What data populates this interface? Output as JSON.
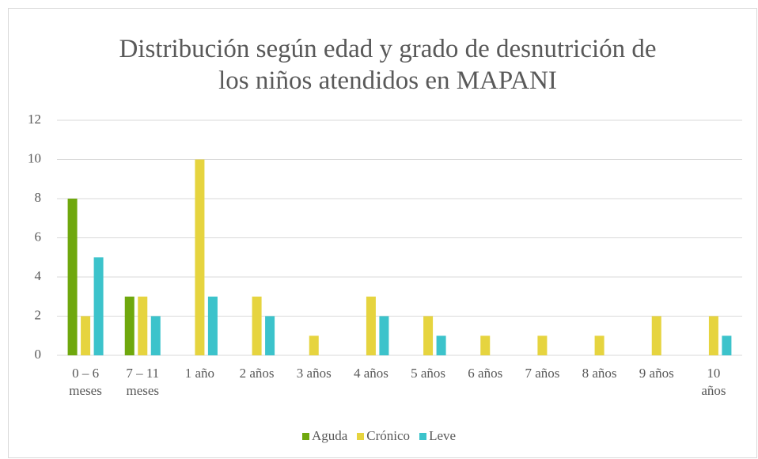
{
  "chart_data": {
    "type": "bar",
    "title": "Distribución según edad y grado de desnutrición de los niños atendidos en MAPANI",
    "categories": [
      "0 – 6 meses",
      "7 – 11 meses",
      "1 año",
      "2 años",
      "3 años",
      "4 años",
      "5 años",
      "6 años",
      "7 años",
      "8 años",
      "9 años",
      "10 años"
    ],
    "series": [
      {
        "name": "Aguda",
        "color": "#6fa80d",
        "values": [
          8,
          3,
          0,
          0,
          0,
          0,
          0,
          0,
          0,
          0,
          0,
          0
        ]
      },
      {
        "name": "Crónico",
        "color": "#e6d43f",
        "values": [
          2,
          3,
          10,
          3,
          1,
          3,
          2,
          1,
          1,
          1,
          2,
          2
        ]
      },
      {
        "name": "Leve",
        "color": "#3cc3cb",
        "values": [
          5,
          2,
          3,
          2,
          0,
          2,
          1,
          0,
          0,
          0,
          0,
          1
        ]
      }
    ],
    "ylim": [
      0,
      12
    ],
    "yticks": [
      0,
      2,
      4,
      6,
      8,
      10,
      12
    ],
    "grid": true,
    "legend": "bottom"
  }
}
